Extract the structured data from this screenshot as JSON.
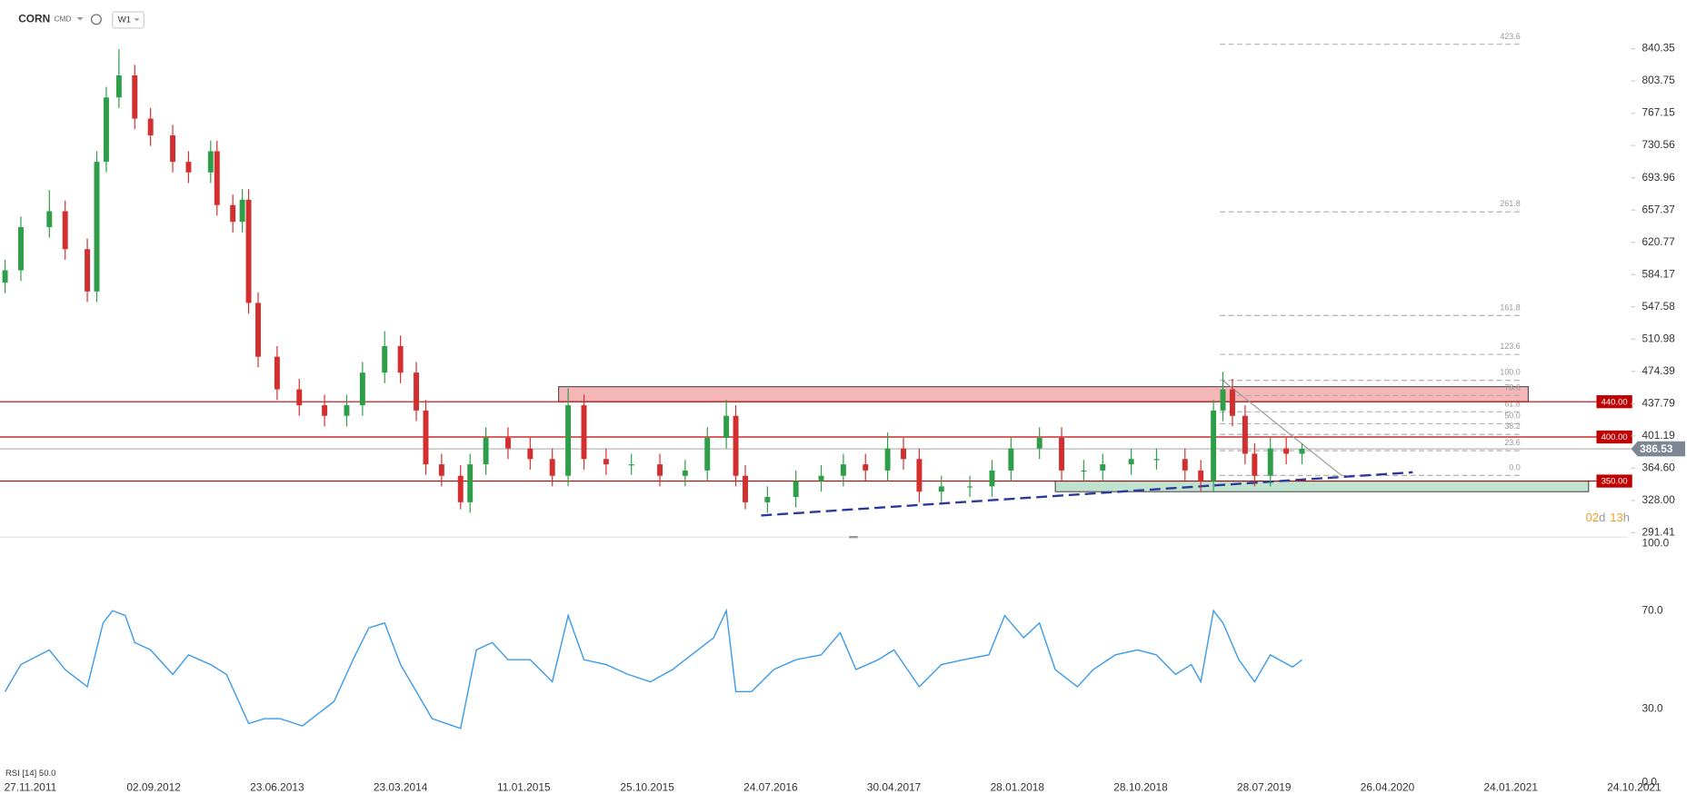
{
  "header": {
    "symbol": "CORN",
    "market": "CMD",
    "interval": "W1"
  },
  "chart_data": {
    "type": "candlestick",
    "up_color": "#2e9e48",
    "down_color": "#d32f2f",
    "x": [
      -8,
      -3,
      6,
      11,
      18,
      21,
      24,
      28,
      33,
      38,
      45,
      50,
      57,
      59,
      64,
      67,
      69,
      72,
      78,
      85,
      93,
      100,
      105,
      112,
      117,
      122,
      125,
      130,
      136,
      139,
      144,
      151,
      158,
      165,
      170,
      175,
      182,
      190,
      199,
      207,
      214,
      220,
      223,
      226,
      233,
      242,
      250,
      257,
      264,
      271,
      276,
      281,
      288,
      297,
      304,
      310,
      319,
      326,
      333,
      339,
      348,
      356,
      365,
      370,
      374,
      377,
      380,
      384,
      387,
      392,
      397,
      402
    ],
    "open": [
      575,
      589,
      638,
      656,
      613,
      565,
      712,
      785,
      810,
      761,
      742,
      712,
      700,
      724,
      663,
      644,
      669,
      552,
      491,
      454,
      436,
      424,
      436,
      473,
      503,
      473,
      430,
      369,
      356,
      326,
      369,
      399,
      387,
      375,
      356,
      436,
      375,
      369,
      369,
      356,
      362,
      399,
      424,
      356,
      326,
      332,
      350,
      356,
      369,
      362,
      387,
      375,
      338,
      344,
      344,
      362,
      387,
      399,
      362,
      362,
      369,
      375,
      375,
      362,
      350,
      430,
      454,
      424,
      381,
      356,
      387,
      381
    ],
    "high": [
      601,
      650,
      680,
      668,
      625,
      724,
      797,
      840,
      822,
      773,
      754,
      724,
      736,
      736,
      675,
      681,
      681,
      564,
      503,
      466,
      448,
      448,
      485,
      520,
      515,
      485,
      442,
      381,
      368,
      381,
      411,
      411,
      399,
      387,
      455,
      448,
      387,
      381,
      381,
      374,
      411,
      442,
      436,
      368,
      344,
      362,
      368,
      381,
      381,
      405,
      399,
      387,
      356,
      356,
      374,
      399,
      411,
      411,
      374,
      381,
      387,
      387,
      387,
      374,
      442,
      474,
      466,
      436,
      393,
      399,
      399,
      393
    ],
    "low": [
      563,
      577,
      626,
      601,
      553,
      553,
      700,
      773,
      749,
      730,
      700,
      688,
      688,
      651,
      632,
      632,
      540,
      479,
      442,
      424,
      412,
      412,
      424,
      461,
      461,
      418,
      357,
      344,
      318,
      314,
      357,
      375,
      363,
      344,
      344,
      363,
      357,
      357,
      344,
      344,
      350,
      387,
      344,
      318,
      314,
      320,
      338,
      344,
      350,
      350,
      363,
      326,
      326,
      332,
      332,
      350,
      375,
      350,
      350,
      350,
      357,
      363,
      350,
      338,
      338,
      418,
      412,
      369,
      344,
      344,
      369,
      369
    ],
    "close": [
      589,
      638,
      656,
      613,
      565,
      712,
      785,
      810,
      761,
      742,
      712,
      700,
      724,
      663,
      644,
      669,
      552,
      491,
      454,
      436,
      424,
      436,
      473,
      503,
      473,
      430,
      369,
      356,
      326,
      369,
      399,
      387,
      375,
      356,
      436,
      375,
      369,
      369,
      356,
      362,
      399,
      424,
      356,
      326,
      332,
      350,
      356,
      369,
      362,
      387,
      375,
      338,
      344,
      344,
      362,
      387,
      399,
      362,
      362,
      369,
      375,
      375,
      362,
      350,
      430,
      454,
      424,
      381,
      356,
      387,
      381,
      386.53
    ],
    "xlim": [
      -9.6,
      505
    ],
    "xticks": [
      {
        "value": 0,
        "label": "27.11.2011"
      },
      {
        "value": 39,
        "label": "02.09.2012"
      },
      {
        "value": 78,
        "label": "23.06.2013"
      },
      {
        "value": 117,
        "label": "23.03.2014"
      },
      {
        "value": 156,
        "label": "11.01.2015"
      },
      {
        "value": 195,
        "label": "25.10.2015"
      },
      {
        "value": 234,
        "label": "24.07.2016"
      },
      {
        "value": 273,
        "label": "30.04.2017"
      },
      {
        "value": 312,
        "label": "28.01.2018"
      },
      {
        "value": 351,
        "label": "28.10.2018"
      },
      {
        "value": 390,
        "label": "28.07.2019"
      },
      {
        "value": 429,
        "label": "26.04.2020"
      },
      {
        "value": 468,
        "label": "24.01.2021"
      },
      {
        "value": 507,
        "label": "24.10.2021"
      }
    ],
    "ylim": [
      286.5,
      895.5
    ],
    "yticks": [
      840.35,
      803.75,
      767.15,
      730.56,
      693.96,
      657.37,
      620.77,
      584.17,
      547.58,
      510.98,
      474.39,
      437.79,
      401.19,
      {
        "value": 364.6,
        "label": "364.60"
      },
      {
        "value": 328,
        "label": "328.00"
      },
      291.41
    ],
    "levels": [
      {
        "value": 440,
        "label": "440.00",
        "color": "#c00000"
      },
      {
        "value": 400,
        "label": "400.00",
        "color": "#c00000"
      },
      {
        "value": 350,
        "label": "350.00",
        "color": "#c00000"
      }
    ],
    "last_price": 386.53,
    "zones": [
      {
        "x": [
          167,
          473.5
        ],
        "y": [
          440,
          457
        ],
        "color": "#f4b6b6"
      },
      {
        "x": [
          324,
          492.6
        ],
        "y": [
          338,
          350
        ],
        "color": "#bfe3cf"
      }
    ],
    "trendlines": [
      {
        "x": [
          231,
          437
        ],
        "y": [
          311,
          360
        ],
        "color": "#2b3a9a",
        "dashed": true
      },
      {
        "x": [
          377,
          414.6
        ],
        "y": [
          464,
          356
        ],
        "color": "#999999",
        "dashed": false
      }
    ],
    "fib": {
      "x_range": [
        376,
        471
      ],
      "levels": [
        423.6,
        261.8,
        161.8,
        123.6,
        {
          "value": 100,
          "label": "100.0"
        },
        78.6,
        61.8,
        {
          "value": 50,
          "label": "50.0"
        },
        38.2,
        23.6,
        {
          "value": 0,
          "label": "0.0"
        }
      ],
      "prices": [
        845.3,
        655.3,
        537.7,
        493.6,
        464.2,
        447.0,
        428.6,
        415.1,
        402.9,
        384.5,
        356.4
      ]
    },
    "countdown": {
      "days": "02",
      "day_unit": "d",
      "hours": "13",
      "hour_unit": "h"
    },
    "rsi": {
      "legend": "RSI [14] 50.0",
      "color": "#3d9be9",
      "ylim": [
        0,
        100
      ],
      "yticks": [
        {
          "value": 100,
          "label": "100.0"
        },
        {
          "value": 70,
          "label": "70.0"
        },
        {
          "value": 30,
          "label": "30.0"
        },
        {
          "value": 0,
          "label": "0.0"
        }
      ],
      "x": [
        -8,
        -3,
        6,
        11,
        18,
        23,
        26,
        30,
        33,
        38,
        45,
        50,
        57,
        62,
        69,
        74,
        79,
        86,
        91,
        96,
        102,
        107,
        112,
        117,
        122,
        127,
        136,
        141,
        146,
        151,
        158,
        165,
        170,
        175,
        182,
        189,
        196,
        203,
        209,
        216,
        220,
        223,
        228,
        235,
        242,
        250,
        256,
        261,
        268,
        273,
        281,
        288,
        295,
        303,
        308,
        314,
        319,
        324,
        331,
        336,
        343,
        350,
        356,
        362,
        367,
        370,
        374,
        377,
        382,
        387,
        392,
        399,
        402
      ],
      "values": [
        37,
        48,
        54,
        46,
        39,
        65,
        70,
        68,
        57,
        54,
        44,
        52,
        48,
        44,
        24,
        26,
        26,
        23,
        28,
        33,
        50,
        63,
        65,
        48,
        37,
        26,
        22,
        54,
        57,
        50,
        50,
        41,
        68,
        50,
        48,
        44,
        41,
        46,
        52,
        59,
        70,
        37,
        37,
        46,
        50,
        52,
        61,
        46,
        50,
        54,
        39,
        48,
        50,
        52,
        68,
        59,
        65,
        46,
        39,
        46,
        52,
        54,
        52,
        44,
        48,
        41,
        70,
        65,
        50,
        41,
        52,
        47,
        50
      ]
    }
  }
}
